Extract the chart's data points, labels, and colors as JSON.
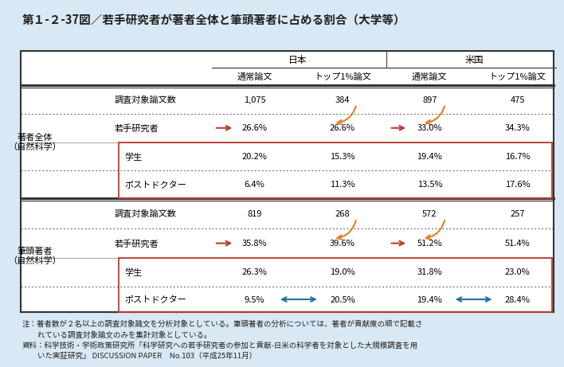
{
  "title": "第１-２-37図／若手研究者が著者全体と筆頭著者に占める割合（大学等）",
  "bg_color": "#d8e8f4",
  "table_bg": "#ffffff",
  "header_japan": "日本",
  "header_usa": "米国",
  "col1": "通常論文",
  "col2": "トップ1%論文",
  "col3": "通常論文",
  "col4": "トップ1%論文",
  "section1_label1": "著者全体",
  "section1_label2": "（自然科学）",
  "section2_label1": "筆頭著者",
  "section2_label2": "（自然科学）",
  "rows": [
    {
      "label": "調査対象論文数",
      "v1": "1,075",
      "v2": "384",
      "v3": "897",
      "v4": "475",
      "indent": false,
      "dotted_above": false
    },
    {
      "label": "若手研究者",
      "v1": "26.6%",
      "v2": "26.6%",
      "v3": "33.0%",
      "v4": "34.3%",
      "indent": false,
      "dotted_above": true
    },
    {
      "label": "学生",
      "v1": "20.2%",
      "v2": "15.3%",
      "v3": "19.4%",
      "v4": "16.7%",
      "indent": true,
      "dotted_above": false
    },
    {
      "label": "ポストドクター",
      "v1": "6.4%",
      "v2": "11.3%",
      "v3": "13.5%",
      "v4": "17.6%",
      "indent": true,
      "dotted_above": true
    }
  ],
  "rows2": [
    {
      "label": "調査対象論文数",
      "v1": "819",
      "v2": "268",
      "v3": "572",
      "v4": "257",
      "indent": false,
      "dotted_above": false
    },
    {
      "label": "若手研究者",
      "v1": "35.8%",
      "v2": "39.6%",
      "v3": "51.2%",
      "v4": "51.4%",
      "indent": false,
      "dotted_above": true
    },
    {
      "label": "学生",
      "v1": "26.3%",
      "v2": "19.0%",
      "v3": "31.8%",
      "v4": "23.0%",
      "indent": true,
      "dotted_above": false
    },
    {
      "label": "ポストドクター",
      "v1": "9.5%",
      "v2": "20.5%",
      "v3": "19.4%",
      "v4": "28.4%",
      "indent": true,
      "dotted_above": true
    }
  ],
  "note_lines": [
    "注：著者数が２名以上の調査対象論文を分析対象としている。筆頭著者の分析については、著者が貢献度の順で記載さ",
    "　　れている調査対象論文のみを集計対象としている。",
    "資料：科学技術・学術政策研究所「科学研究への若手研究者の参加と貢献-日米の科学者を対象とした大規模調査を用",
    "　　いた実証研究」 DISCUSSION PAPER　No.103（平成25年11月）"
  ],
  "red_color": "#c0392b",
  "orange_color": "#e08020",
  "blue_color": "#2471a3"
}
